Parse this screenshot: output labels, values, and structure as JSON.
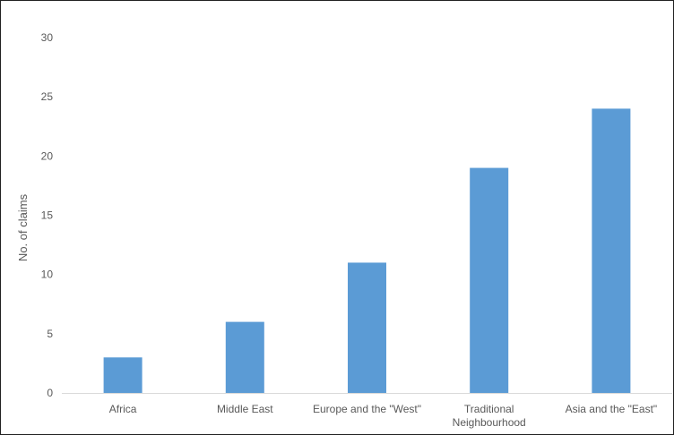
{
  "chart_data": {
    "type": "bar",
    "title": "",
    "xlabel": "",
    "ylabel": "No. of claims",
    "categories": [
      [
        "Africa"
      ],
      [
        "Middle East"
      ],
      [
        "Europe and the \"West\""
      ],
      [
        "Traditional",
        "Neighbourhood"
      ],
      [
        "Asia and the \"East\""
      ]
    ],
    "values": [
      3,
      6,
      11,
      19,
      24
    ],
    "ylim": [
      0,
      30
    ],
    "yticks": [
      0,
      5,
      10,
      15,
      20,
      25,
      30
    ],
    "grid": false,
    "legend": "none",
    "bar_color": "#5b9bd5",
    "axis_color": "#d9d9d9"
  }
}
